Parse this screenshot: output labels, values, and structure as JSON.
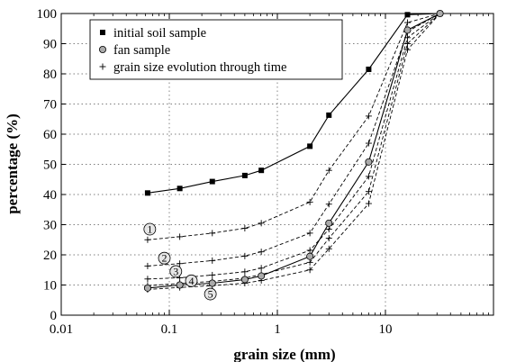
{
  "chart_data": {
    "type": "line",
    "x_scale": "log",
    "xlim": [
      0.01,
      100
    ],
    "ylim": [
      0,
      100
    ],
    "xlabel": "grain size (mm)",
    "ylabel": "percentage (%)",
    "x_tick_labels": [
      "0.01",
      "0.1",
      "1",
      "10"
    ],
    "x_ticks": [
      0.01,
      0.1,
      1,
      10
    ],
    "y_ticks": [
      0,
      10,
      20,
      30,
      40,
      50,
      60,
      70,
      80,
      90,
      100
    ],
    "y_tick_labels": [
      "0",
      "10",
      "20",
      "30",
      "40",
      "50",
      "60",
      "70",
      "80",
      "90",
      "100"
    ],
    "legend": {
      "position": "top-left",
      "entries": [
        {
          "label": "initial soil sample",
          "marker": "filled-square"
        },
        {
          "label": "fan sample",
          "marker": "gray-circle"
        },
        {
          "label": "grain size evolution through time",
          "marker": "plus"
        }
      ]
    },
    "series": [
      {
        "name": "initial soil sample",
        "marker": "filled-square",
        "line": "solid",
        "x": [
          0.063,
          0.125,
          0.25,
          0.5,
          0.71,
          2,
          3,
          7,
          16,
          32
        ],
        "y": [
          40.5,
          42,
          44.3,
          46.3,
          48,
          56,
          66.3,
          81.5,
          99.6,
          100
        ]
      },
      {
        "name": "fan sample",
        "marker": "gray-circle",
        "line": "solid",
        "x": [
          0.063,
          0.125,
          0.25,
          0.5,
          0.71,
          2,
          3,
          7,
          16,
          32
        ],
        "y": [
          9,
          10,
          10.6,
          11.8,
          13,
          19.5,
          30.5,
          50.8,
          94.5,
          100
        ]
      },
      {
        "name": "grain size evolution through time",
        "label": "1",
        "marker": "plus",
        "line": "dashed",
        "x": [
          0.063,
          0.125,
          0.25,
          0.5,
          0.71,
          2,
          3,
          7,
          16,
          32
        ],
        "y": [
          25,
          26,
          27.2,
          28.8,
          30.5,
          37.5,
          48,
          66,
          97,
          100
        ]
      },
      {
        "label": "2",
        "marker": "plus",
        "line": "dashed",
        "x": [
          0.063,
          0.125,
          0.25,
          0.5,
          0.71,
          2,
          3,
          7,
          16,
          32
        ],
        "y": [
          16.3,
          17.1,
          18.1,
          19.6,
          21,
          27.2,
          36.8,
          57,
          94,
          100
        ]
      },
      {
        "label": "3",
        "marker": "plus",
        "line": "dashed",
        "x": [
          0.063,
          0.125,
          0.25,
          0.5,
          0.71,
          2,
          3,
          7,
          16,
          32
        ],
        "y": [
          12,
          12.4,
          13.3,
          14.4,
          15.6,
          21.5,
          28.5,
          46,
          92,
          100
        ]
      },
      {
        "label": "4",
        "marker": "plus",
        "line": "dashed",
        "x": [
          0.063,
          0.125,
          0.25,
          0.5,
          0.71,
          2,
          3,
          7,
          16,
          32
        ],
        "y": [
          9.8,
          10.5,
          11.2,
          12.3,
          13.5,
          17.5,
          25.5,
          41,
          90,
          100
        ]
      },
      {
        "label": "5",
        "marker": "plus",
        "line": "dashed",
        "x": [
          0.063,
          0.125,
          0.25,
          0.5,
          0.71,
          2,
          3,
          7,
          16,
          32
        ],
        "y": [
          8.5,
          9.2,
          9.8,
          10.6,
          11.5,
          15,
          22,
          37,
          88,
          100
        ]
      }
    ],
    "annotations": [
      {
        "text": "1",
        "x": 0.066,
        "y": 28.5
      },
      {
        "text": "2",
        "x": 0.09,
        "y": 18.9
      },
      {
        "text": "3",
        "x": 0.115,
        "y": 14.5
      },
      {
        "text": "4",
        "x": 0.16,
        "y": 11.4
      },
      {
        "text": "5",
        "x": 0.24,
        "y": 7
      }
    ]
  }
}
